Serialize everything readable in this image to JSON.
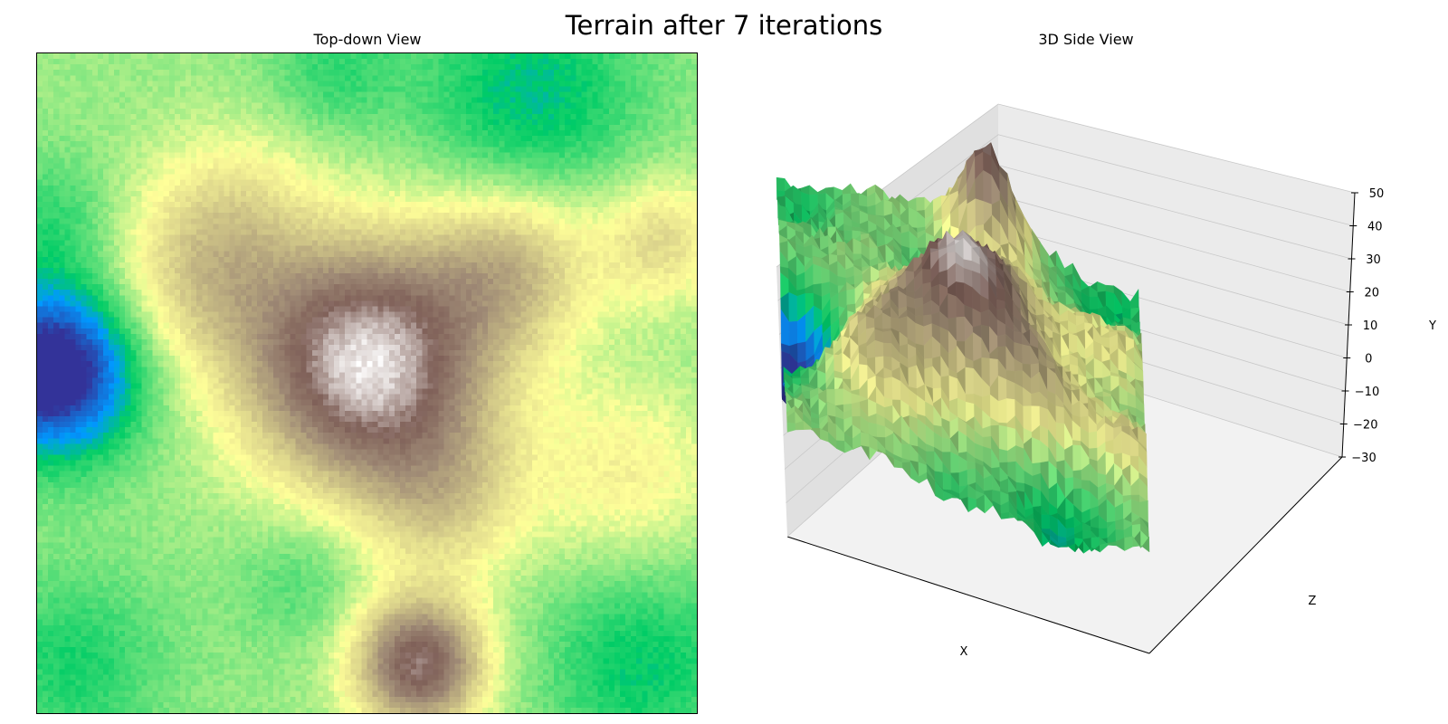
{
  "figure": {
    "suptitle": "Terrain after 7 iterations"
  },
  "chart_data": [
    {
      "type": "heatmap",
      "title": "Top-down View",
      "grid": false,
      "colormap": "terrain",
      "color_range": [
        -30,
        50
      ],
      "colorbar": false,
      "ticks_visible": false,
      "peaks": [
        {
          "u": 0.5,
          "v": 0.47,
          "h": 46,
          "w": 0.13
        },
        {
          "u": 0.58,
          "v": 0.93,
          "h": 38,
          "w": 0.07
        },
        {
          "u": 0.72,
          "v": 0.32,
          "h": 18,
          "w": 0.09
        },
        {
          "u": 0.95,
          "v": 0.28,
          "h": 14,
          "w": 0.07
        },
        {
          "u": 0.24,
          "v": 0.34,
          "h": 14,
          "w": 0.1
        },
        {
          "u": 0.9,
          "v": 0.64,
          "h": 10,
          "w": 0.1
        },
        {
          "u": 0.62,
          "v": 0.68,
          "h": 13,
          "w": 0.09
        },
        {
          "u": 0.3,
          "v": 0.22,
          "h": 8,
          "w": 0.09
        },
        {
          "u": 0.02,
          "v": 0.48,
          "h": -40,
          "w": 0.09
        },
        {
          "u": 0.75,
          "v": 0.06,
          "h": -14,
          "w": 0.12
        },
        {
          "u": 0.45,
          "v": 0.02,
          "h": -8,
          "w": 0.07
        },
        {
          "u": 0.92,
          "v": 0.93,
          "h": -12,
          "w": 0.11
        },
        {
          "u": 0.05,
          "v": 0.93,
          "h": -10,
          "w": 0.1
        },
        {
          "u": 0.4,
          "v": 0.8,
          "h": -6,
          "w": 0.07
        },
        {
          "u": 0.02,
          "v": 0.25,
          "h": -8,
          "w": 0.07
        }
      ],
      "base_height": 2
    },
    {
      "type": "surface",
      "title": "3D Side View",
      "xlabel": "X",
      "ylabel": "Z",
      "zlabel": "Y",
      "zlim": [
        -30,
        50
      ],
      "zticks": [
        "50",
        "40",
        "30",
        "20",
        "10",
        "0",
        "−10",
        "−20",
        "−30"
      ],
      "colormap": "terrain",
      "grid": true
    }
  ],
  "colors": {
    "cmap_terrain": [
      "#333399",
      "#0099ff",
      "#00cc66",
      "#99eb85",
      "#ffff99",
      "#9e8975",
      "#806159",
      "#ffffff"
    ],
    "pane_back": "#ebebeb",
    "pane_side": "#e0e0e0",
    "pane_floor": "#f2f2f2",
    "gridline": "#c8c8c8"
  }
}
